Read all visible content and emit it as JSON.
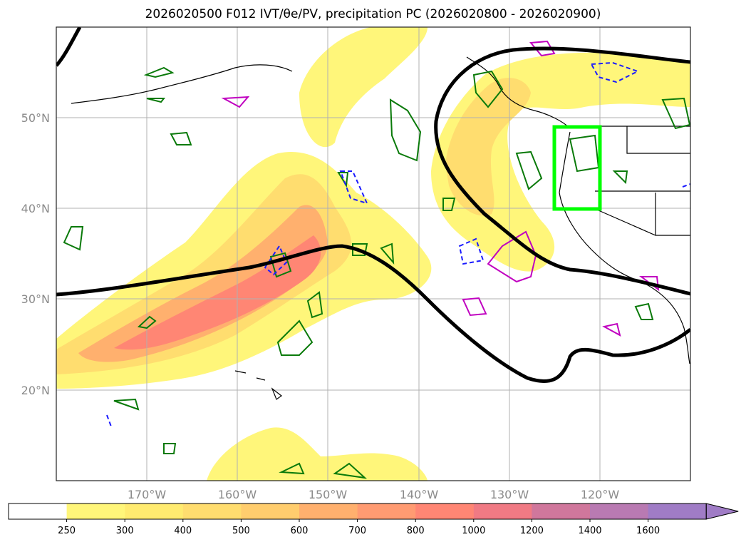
{
  "title": "2026020500 F012 IVT/θe/PV, precipitation PC (2026020800 - 2026020900)",
  "map": {
    "type": "map",
    "projection": "plate-carree",
    "lon_range": [
      -180,
      -110
    ],
    "lat_range": [
      10,
      60
    ],
    "grid": true,
    "lon_ticks": [
      "170°W",
      "160°W",
      "150°W",
      "140°W",
      "130°W",
      "120°W"
    ],
    "lat_ticks": [
      "20°N",
      "30°N",
      "40°N",
      "50°N"
    ],
    "highlight_box": {
      "lon_min": -125,
      "lon_max": -120,
      "lat_min": 40,
      "lat_max": 49,
      "color": "#00ff00"
    },
    "layers": [
      {
        "name": "IVT",
        "style": "filled contours"
      },
      {
        "name": "theta_e",
        "style": "thick black contour"
      },
      {
        "name": "PV",
        "style": "green / magenta / dashed blue contours"
      },
      {
        "name": "precipitation PC",
        "style": "contours"
      }
    ]
  },
  "colorbar": {
    "ticks": [
      "250",
      "300",
      "400",
      "500",
      "600",
      "700",
      "800",
      "1000",
      "1200",
      "1400",
      "1600"
    ],
    "colors": [
      "#ffffff",
      "#fff67a",
      "#ffeb70",
      "#ffdd6f",
      "#ffcd6e",
      "#ffb06e",
      "#ff9b72",
      "#ff8674",
      "#f07a84",
      "#d0779c",
      "#b97ab2",
      "#a07cc6"
    ],
    "extend": "max"
  },
  "colors": {
    "ivt_low": "#fff67a",
    "ivt_mid": "#ffd070",
    "ivt_high": "#ff8674",
    "theta_e": "#000000",
    "pv_green": "#0a7a0a",
    "pv_magenta": "#c000c0",
    "pv_blue": "#1a1aff",
    "box": "#00ff00"
  }
}
